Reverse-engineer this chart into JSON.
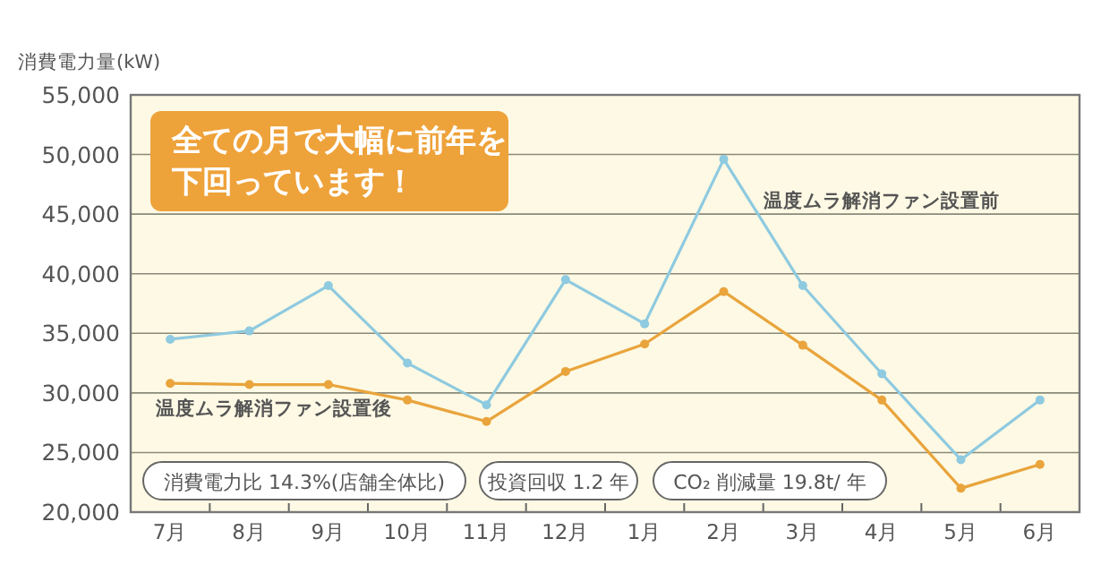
{
  "chart_data": {
    "type": "line",
    "ylabel": "消費電力量(kW)",
    "categories": [
      "7月",
      "8月",
      "9月",
      "10月",
      "11月",
      "12月",
      "1月",
      "2月",
      "3月",
      "4月",
      "5月",
      "6月"
    ],
    "series": [
      {
        "name": "温度ムラ解消ファン設置前",
        "color": "#8ecae0",
        "values": [
          34500,
          35200,
          39000,
          32500,
          29000,
          39500,
          35800,
          49600,
          39000,
          31600,
          24400,
          29400
        ]
      },
      {
        "name": "温度ムラ解消ファン設置後",
        "color": "#e9a43c",
        "values": [
          30800,
          30700,
          30700,
          29400,
          27600,
          31800,
          34100,
          38500,
          34000,
          29400,
          22000,
          24000
        ]
      }
    ],
    "ylim": [
      20000,
      55000
    ],
    "yticks": [
      {
        "value": 20000,
        "label": "20,000"
      },
      {
        "value": 25000,
        "label": "25,000"
      },
      {
        "value": 30000,
        "label": "30,000"
      },
      {
        "value": 35000,
        "label": "35,000"
      },
      {
        "value": 40000,
        "label": "40,000"
      },
      {
        "value": 45000,
        "label": "45,000"
      },
      {
        "value": 50000,
        "label": "50,000"
      },
      {
        "value": 55000,
        "label": "55,000"
      }
    ],
    "grid": "y",
    "marker": "circle",
    "line_style": "solid",
    "annotations": [
      "全ての月で大幅に前年を",
      "下回っています！",
      "消費電力比 14.3%(店舗全体比)",
      "投資回収 1.2 年",
      "CO₂ 削減量 19.8t/ 年"
    ]
  }
}
